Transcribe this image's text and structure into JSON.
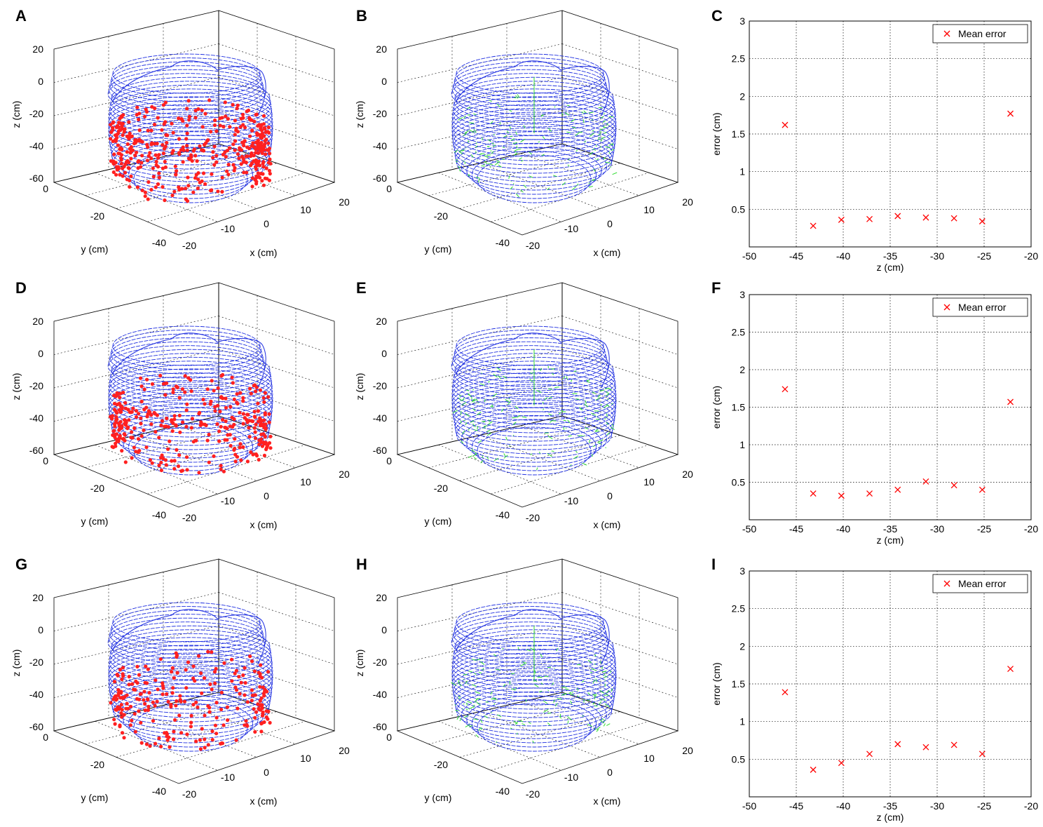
{
  "figure": {
    "panel_letters": [
      "A",
      "B",
      "C",
      "D",
      "E",
      "F",
      "G",
      "H",
      "I"
    ]
  },
  "colors": {
    "surface": "#1f2fe0",
    "points": "#ff2020",
    "residual": "#33dd33",
    "grid": "#000000",
    "marker": "#ff0000"
  },
  "panels3d": [
    {
      "letter": "A",
      "style": "points",
      "x_ticks": [
        "-20",
        "-10",
        "0",
        "10",
        "20"
      ],
      "y_ticks": [
        "0",
        "-20",
        "-40"
      ],
      "z_ticks": [
        "20",
        "0",
        "-20",
        "-40",
        "-60"
      ],
      "xlabel": "x (cm)",
      "ylabel": "y (cm)",
      "zlabel": "z (cm)"
    },
    {
      "letter": "B",
      "style": "residual",
      "x_ticks": [
        "-20",
        "-10",
        "0",
        "10",
        "20"
      ],
      "y_ticks": [
        "0",
        "-20",
        "-40"
      ],
      "z_ticks": [
        "20",
        "0",
        "-20",
        "-40",
        "-60"
      ],
      "xlabel": "x (cm)",
      "ylabel": "y (cm)",
      "zlabel": "z (cm)"
    },
    {
      "letter": "D",
      "style": "points",
      "x_ticks": [
        "-20",
        "-10",
        "0",
        "10",
        "20"
      ],
      "y_ticks": [
        "0",
        "-20",
        "-40"
      ],
      "z_ticks": [
        "20",
        "0",
        "-20",
        "-40",
        "-60"
      ],
      "xlabel": "x (cm)",
      "ylabel": "y (cm)",
      "zlabel": "z (cm)"
    },
    {
      "letter": "E",
      "style": "residual",
      "x_ticks": [
        "-20",
        "-10",
        "0",
        "10",
        "20"
      ],
      "y_ticks": [
        "0",
        "-20",
        "-40"
      ],
      "z_ticks": [
        "20",
        "0",
        "-20",
        "-40",
        "-60"
      ],
      "xlabel": "x (cm)",
      "ylabel": "y (cm)",
      "zlabel": "z (cm)"
    },
    {
      "letter": "G",
      "style": "points",
      "x_ticks": [
        "-20",
        "-10",
        "0",
        "10",
        "20"
      ],
      "y_ticks": [
        "0",
        "-20",
        "-40"
      ],
      "z_ticks": [
        "20",
        "0",
        "-20",
        "-40",
        "-60"
      ],
      "xlabel": "x (cm)",
      "ylabel": "y (cm)",
      "zlabel": "z (cm)"
    },
    {
      "letter": "H",
      "style": "residual",
      "x_ticks": [
        "-20",
        "-10",
        "0",
        "10",
        "20"
      ],
      "y_ticks": [
        "0",
        "-20",
        "-40"
      ],
      "z_ticks": [
        "20",
        "0",
        "-20",
        "-40",
        "-60"
      ],
      "xlabel": "x (cm)",
      "ylabel": "y (cm)",
      "zlabel": "z (cm)"
    }
  ],
  "chart_data": [
    {
      "panel": "C",
      "type": "scatter",
      "title": "",
      "xlabel": "z (cm)",
      "ylabel": "error (cm)",
      "xlim": [
        -50,
        -20
      ],
      "ylim": [
        0,
        3
      ],
      "grid": true,
      "x_ticks": [
        "-50",
        "-45",
        "-40",
        "-35",
        "-30",
        "-25",
        "-20"
      ],
      "y_ticks": [
        "0.5",
        "1",
        "1.5",
        "2",
        "2.5",
        "3"
      ],
      "legend": {
        "label": "Mean error",
        "placement": "top-right"
      },
      "series": [
        {
          "name": "Mean error",
          "marker": "x",
          "x": [
            -46.2,
            -43.2,
            -40.2,
            -37.2,
            -34.2,
            -31.2,
            -28.2,
            -25.2,
            -22.2
          ],
          "y": [
            1.62,
            0.28,
            0.36,
            0.37,
            0.41,
            0.39,
            0.38,
            0.34,
            1.77
          ]
        }
      ]
    },
    {
      "panel": "F",
      "type": "scatter",
      "title": "",
      "xlabel": "z (cm)",
      "ylabel": "error (cm)",
      "xlim": [
        -50,
        -20
      ],
      "ylim": [
        0,
        3
      ],
      "grid": true,
      "x_ticks": [
        "-50",
        "-45",
        "-40",
        "-35",
        "-30",
        "-25",
        "-20"
      ],
      "y_ticks": [
        "0.5",
        "1",
        "1.5",
        "2",
        "2.5",
        "3"
      ],
      "legend": {
        "label": "Mean error",
        "placement": "top-right"
      },
      "series": [
        {
          "name": "Mean error",
          "marker": "x",
          "x": [
            -46.2,
            -43.2,
            -40.2,
            -37.2,
            -34.2,
            -31.2,
            -28.2,
            -25.2,
            -22.2
          ],
          "y": [
            1.74,
            0.35,
            0.32,
            0.35,
            0.4,
            0.51,
            0.46,
            0.4,
            1.57
          ]
        }
      ]
    },
    {
      "panel": "I",
      "type": "scatter",
      "title": "",
      "xlabel": "z (cm)",
      "ylabel": "error (cm)",
      "xlim": [
        -50,
        -20
      ],
      "ylim": [
        0,
        3
      ],
      "grid": true,
      "x_ticks": [
        "-50",
        "-45",
        "-40",
        "-35",
        "-30",
        "-25",
        "-20"
      ],
      "y_ticks": [
        "0.5",
        "1",
        "1.5",
        "2",
        "2.5",
        "3"
      ],
      "legend": {
        "label": "Mean error",
        "placement": "top-right"
      },
      "series": [
        {
          "name": "Mean error",
          "marker": "x",
          "x": [
            -46.2,
            -43.2,
            -40.2,
            -37.2,
            -34.2,
            -31.2,
            -28.2,
            -25.2,
            -22.2
          ],
          "y": [
            1.39,
            0.36,
            0.45,
            0.57,
            0.7,
            0.66,
            0.69,
            0.57,
            1.7
          ]
        }
      ]
    }
  ]
}
